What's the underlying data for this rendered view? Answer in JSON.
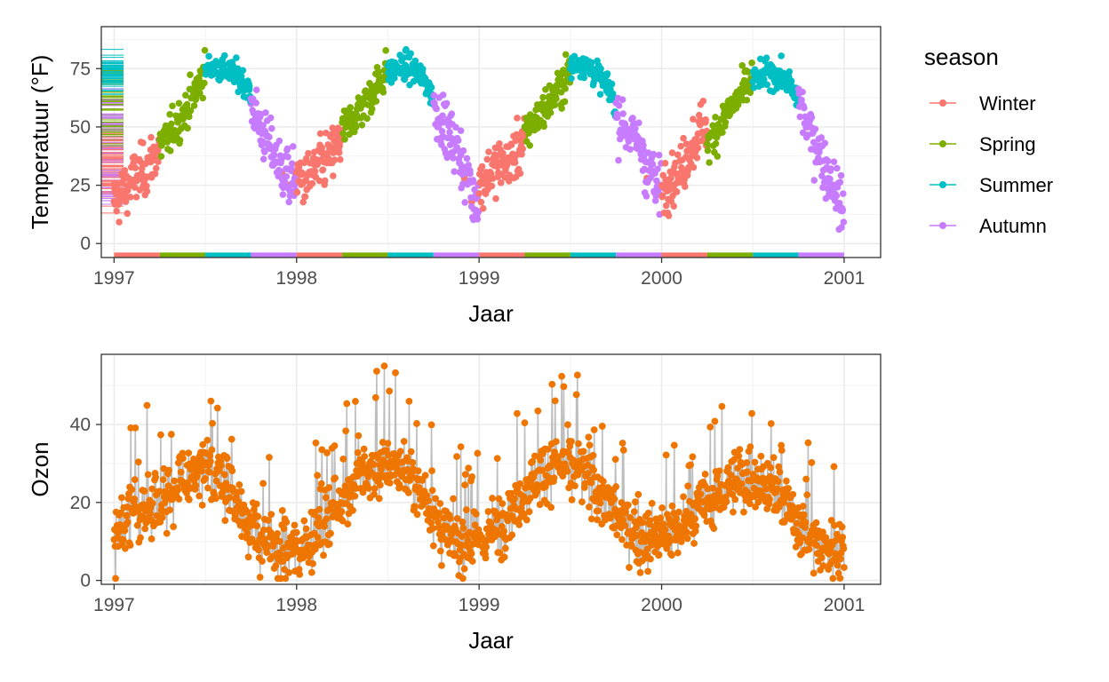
{
  "colors": {
    "Winter": "#F8766D",
    "Spring": "#7CAE00",
    "Summer": "#00BFC4",
    "Autumn": "#C77CFF",
    "ozone": "#EE7600",
    "ozone_line": "#BEBEBE",
    "grid_major": "#EBEBEB",
    "grid_minor": "#F5F5F5",
    "panel_border": "#333333"
  },
  "legend": {
    "title": "season",
    "position": "right",
    "items": [
      {
        "label": "Winter",
        "color": "#F8766D"
      },
      {
        "label": "Spring",
        "color": "#7CAE00"
      },
      {
        "label": "Summer",
        "color": "#00BFC4"
      },
      {
        "label": "Autumn",
        "color": "#C77CFF"
      }
    ]
  },
  "chart_data": [
    {
      "type": "scatter",
      "xlabel": "Jaar",
      "ylabel": "Temperatuur (°F)",
      "xlim": [
        1996.93,
        2001.2
      ],
      "ylim": [
        -6,
        93
      ],
      "xticks": [
        1997,
        1998,
        1999,
        2000,
        2001
      ],
      "xtick_labels": [
        "1997",
        "1998",
        "1999",
        "2000",
        "2001"
      ],
      "yticks": [
        0,
        25,
        50,
        75
      ],
      "ytick_labels": [
        "0",
        "25",
        "50",
        "75"
      ],
      "grid": true,
      "color_by": "season",
      "series": [
        {
          "name": "Winter",
          "x": [
            1997.0,
            1997.05,
            1997.1,
            1997.15,
            1997.2,
            1997.24,
            1997.92,
            1997.96,
            1998.0,
            1998.05,
            1998.1,
            1998.15,
            1998.2,
            1998.24,
            1998.92,
            1998.96,
            1999.0,
            1999.05,
            1999.1,
            1999.15,
            1999.2,
            1999.24,
            1999.92,
            1999.96,
            2000.0,
            2000.05,
            2000.1,
            2000.15,
            2000.2,
            2000.24
          ],
          "y": [
            18,
            22,
            27,
            30,
            35,
            40,
            30,
            25,
            28,
            27,
            31,
            35,
            39,
            44,
            28,
            18,
            25,
            30,
            33,
            35,
            38,
            44,
            28,
            22,
            25,
            28,
            30,
            40,
            47,
            52
          ]
        },
        {
          "name": "Spring",
          "x": [
            1997.25,
            1997.3,
            1997.35,
            1997.4,
            1997.45,
            1997.49,
            1998.25,
            1998.3,
            1998.35,
            1998.4,
            1998.45,
            1998.49,
            1999.25,
            1999.3,
            1999.35,
            1999.4,
            1999.45,
            1999.49,
            2000.25,
            2000.3,
            2000.35,
            2000.4,
            2000.45,
            2000.49
          ],
          "y": [
            42,
            46,
            52,
            58,
            66,
            74,
            48,
            53,
            58,
            63,
            69,
            74,
            46,
            52,
            57,
            62,
            68,
            73,
            42,
            48,
            55,
            60,
            65,
            70
          ]
        },
        {
          "name": "Summer",
          "x": [
            1997.5,
            1997.55,
            1997.6,
            1997.65,
            1997.7,
            1997.74,
            1998.5,
            1998.55,
            1998.6,
            1998.65,
            1998.7,
            1998.74,
            1999.5,
            1999.55,
            1999.6,
            1999.65,
            1999.7,
            1999.74,
            2000.5,
            2000.55,
            2000.6,
            2000.65,
            2000.7,
            2000.74
          ],
          "y": [
            74,
            76,
            75,
            73,
            70,
            66,
            73,
            75,
            76,
            74,
            70,
            64,
            75,
            78,
            76,
            72,
            68,
            62,
            70,
            72,
            73,
            72,
            68,
            62
          ]
        },
        {
          "name": "Autumn",
          "x": [
            1997.75,
            1997.8,
            1997.85,
            1997.9,
            1997.95,
            1997.99,
            1998.75,
            1998.8,
            1998.85,
            1998.9,
            1998.95,
            1998.99,
            1999.75,
            1999.8,
            1999.85,
            1999.9,
            1999.95,
            1999.99,
            2000.75,
            2000.8,
            2000.85,
            2000.9,
            2000.95,
            2000.99
          ],
          "y": [
            60,
            50,
            42,
            35,
            32,
            28,
            60,
            52,
            45,
            38,
            30,
            20,
            55,
            50,
            45,
            40,
            34,
            25,
            62,
            50,
            42,
            32,
            25,
            14
          ]
        }
      ],
      "rug": {
        "side": "left",
        "color_by": "season"
      },
      "season_band": {
        "y": -5,
        "note": "colored season segments drawn along the bottom of the panel"
      }
    },
    {
      "type": "line",
      "markers": true,
      "xlabel": "Jaar",
      "ylabel": "Ozon",
      "xlim": [
        1996.93,
        2001.2
      ],
      "ylim": [
        -1,
        58
      ],
      "xticks": [
        1997,
        1998,
        1999,
        2000,
        2001
      ],
      "xtick_labels": [
        "1997",
        "1998",
        "1999",
        "2000",
        "2001"
      ],
      "yticks": [
        0,
        20,
        40
      ],
      "ytick_labels": [
        "0",
        "20",
        "40"
      ],
      "grid": true,
      "series": [
        {
          "x": [
            1997.0,
            1997.1,
            1997.2,
            1997.3,
            1997.4,
            1997.5,
            1997.6,
            1997.7,
            1997.8,
            1997.9,
            1998.0,
            1998.1,
            1998.2,
            1998.3,
            1998.4,
            1998.5,
            1998.6,
            1998.7,
            1998.8,
            1998.9,
            1999.0,
            1999.1,
            1999.2,
            1999.3,
            1999.4,
            1999.5,
            1999.6,
            1999.7,
            1999.8,
            1999.9,
            2000.0,
            2000.1,
            2000.2,
            2000.3,
            2000.4,
            2000.5,
            2000.6,
            2000.7,
            2000.8,
            2000.9,
            2001.0
          ],
          "y": [
            12,
            16,
            20,
            22,
            26,
            28,
            25,
            18,
            10,
            8,
            8,
            12,
            18,
            24,
            28,
            30,
            28,
            22,
            12,
            9,
            10,
            14,
            20,
            26,
            30,
            29,
            27,
            20,
            14,
            11,
            11,
            13,
            18,
            22,
            25,
            27,
            24,
            18,
            12,
            8,
            9
          ]
        }
      ]
    }
  ]
}
